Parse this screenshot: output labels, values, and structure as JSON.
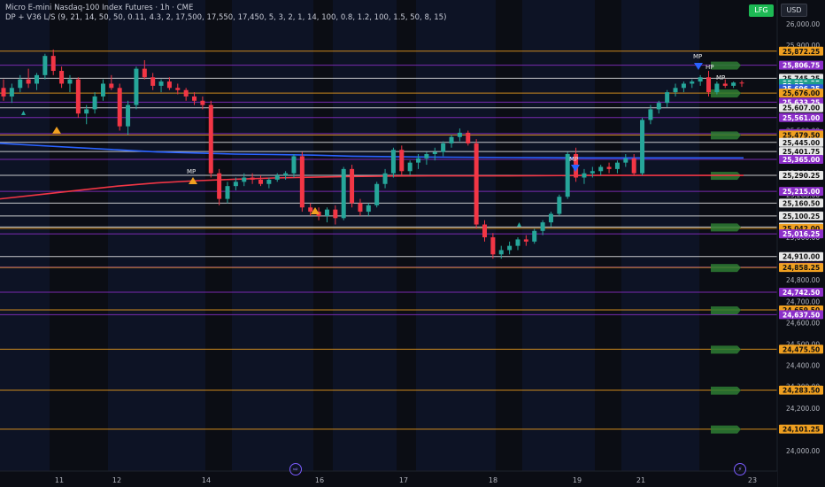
{
  "header": {
    "title": "Micro E-mini Nasdaq-100 Index Futures · 1h · CME",
    "indicator": "DP + V36 L/S (9, 21, 14, 50, 50, 0.11, 4.3, 2, 17,500, 17,550, 17,450, 5, 3, 2, 1, 14, 100, 0.8, 1.2, 100, 1.5, 50, 8, 15)"
  },
  "toolbar": {
    "currency": "USD",
    "badge": "LFG"
  },
  "colors": {
    "background": "#0b0d14",
    "session_stripe": "#111a33",
    "up_candle": "#26a69a",
    "down_candle": "#f23645",
    "orange_line": "#f0a020",
    "purple_line": "#8c2fc9",
    "white_line": "#e8e8e8",
    "blue_ma": "#2962ff",
    "red_ma": "#f23645"
  },
  "price_axis": {
    "ticks": [
      "26,000.00",
      "25,900.00",
      "25,800.00",
      "25,700.00",
      "25,600.00",
      "25,500.00",
      "25,400.00",
      "25,300.00",
      "25,200.00",
      "25,100.00",
      "25,000.00",
      "24,900.00",
      "24,800.00",
      "24,700.00",
      "24,600.00",
      "24,500.00",
      "24,400.00",
      "24,300.00",
      "24,200.00",
      "24,100.00",
      "24,000.00"
    ]
  },
  "time_axis": {
    "ticks": [
      "11",
      "12",
      "14",
      "16",
      "17",
      "18",
      "19",
      "21",
      "23"
    ]
  },
  "level_labels": [
    {
      "text": "25,872.25",
      "value": 25872.25,
      "color": "orange"
    },
    {
      "text": "25,806.75",
      "value": 25806.75,
      "color": "purple"
    },
    {
      "text": "25,745.25",
      "value": 25745.25,
      "color": "white"
    },
    {
      "text": "25,722.25",
      "value": 25722.25,
      "color": "teal"
    },
    {
      "text": "52:27",
      "value": 25709,
      "color": "teal"
    },
    {
      "text": "25,696.25",
      "value": 25696.25,
      "color": "blue"
    },
    {
      "text": "25,676.00",
      "value": 25676.0,
      "color": "orange"
    },
    {
      "text": "25,633.25",
      "value": 25633.25,
      "color": "purple"
    },
    {
      "text": "25,607.00",
      "value": 25607.0,
      "color": "white"
    },
    {
      "text": "25,561.00",
      "value": 25561.0,
      "color": "purple"
    },
    {
      "text": "25,485.75",
      "value": 25485.75,
      "color": "purple"
    },
    {
      "text": "25,479.50",
      "value": 25479.5,
      "color": "orange"
    },
    {
      "text": "25,445.00",
      "value": 25445.0,
      "color": "white"
    },
    {
      "text": "25,401.75",
      "value": 25401.75,
      "color": "white"
    },
    {
      "text": "25,365.00",
      "value": 25365.0,
      "color": "purple"
    },
    {
      "text": "25,290.25",
      "value": 25290.25,
      "color": "white"
    },
    {
      "text": "25,215.00",
      "value": 25215.0,
      "color": "purple"
    },
    {
      "text": "25,160.50",
      "value": 25160.5,
      "color": "white"
    },
    {
      "text": "25,100.25",
      "value": 25100.25,
      "color": "white"
    },
    {
      "text": "25,048.25",
      "value": 25048.25,
      "color": "white"
    },
    {
      "text": "25,042.00",
      "value": 25042.0,
      "color": "orange"
    },
    {
      "text": "25,016.25",
      "value": 25016.25,
      "color": "purple"
    },
    {
      "text": "24,910.00",
      "value": 24910.0,
      "color": "white"
    },
    {
      "text": "24,859.75",
      "value": 24859.75,
      "color": "purple"
    },
    {
      "text": "24,858.25",
      "value": 24858.25,
      "color": "orange"
    },
    {
      "text": "24,742.50",
      "value": 24742.5,
      "color": "purple"
    },
    {
      "text": "24,659.50",
      "value": 24659.5,
      "color": "orange"
    },
    {
      "text": "24,637.50",
      "value": 24637.5,
      "color": "purple"
    },
    {
      "text": "24,475.50",
      "value": 24475.5,
      "color": "orange"
    },
    {
      "text": "24,283.50",
      "value": 24283.5,
      "color": "orange"
    },
    {
      "text": "24,101.25",
      "value": 24101.25,
      "color": "orange"
    }
  ],
  "markers": [
    {
      "text": "MP",
      "kind": "down-triangle"
    },
    {
      "text": "HP",
      "kind": "label"
    },
    {
      "text": "MP",
      "kind": "label"
    },
    {
      "text": "MP",
      "kind": "up-triangle"
    },
    {
      "text": "MP",
      "kind": "down-triangle"
    }
  ],
  "chart_data": {
    "type": "candlestick",
    "title": "Micro E-mini Nasdaq-100 Index Futures · 1h · CME",
    "ylim": [
      24000,
      26000
    ],
    "x_ticks": [
      "11",
      "12",
      "14",
      "16",
      "17",
      "18",
      "19",
      "21",
      "23"
    ],
    "candles_ohlc": [
      [
        25700,
        25740,
        25640,
        25660
      ],
      [
        25660,
        25720,
        25630,
        25700
      ],
      [
        25700,
        25760,
        25680,
        25740
      ],
      [
        25740,
        25790,
        25700,
        25720
      ],
      [
        25720,
        25770,
        25690,
        25760
      ],
      [
        25760,
        25860,
        25740,
        25850
      ],
      [
        25850,
        25880,
        25760,
        25780
      ],
      [
        25780,
        25800,
        25700,
        25720
      ],
      [
        25720,
        25760,
        25680,
        25740
      ],
      [
        25740,
        25750,
        25560,
        25580
      ],
      [
        25580,
        25620,
        25530,
        25600
      ],
      [
        25600,
        25680,
        25580,
        25660
      ],
      [
        25660,
        25740,
        25640,
        25720
      ],
      [
        25720,
        25760,
        25690,
        25700
      ],
      [
        25700,
        25720,
        25500,
        25520
      ],
      [
        25520,
        25640,
        25480,
        25620
      ],
      [
        25620,
        25800,
        25600,
        25790
      ],
      [
        25790,
        25830,
        25740,
        25750
      ],
      [
        25750,
        25770,
        25690,
        25710
      ],
      [
        25710,
        25740,
        25680,
        25730
      ],
      [
        25730,
        25750,
        25690,
        25700
      ],
      [
        25700,
        25720,
        25670,
        25690
      ],
      [
        25690,
        25700,
        25640,
        25660
      ],
      [
        25660,
        25680,
        25620,
        25640
      ],
      [
        25640,
        25660,
        25600,
        25620
      ],
      [
        25620,
        25640,
        25280,
        25300
      ],
      [
        25300,
        25320,
        25150,
        25180
      ],
      [
        25180,
        25260,
        25160,
        25240
      ],
      [
        25240,
        25280,
        25220,
        25260
      ],
      [
        25260,
        25300,
        25240,
        25280
      ],
      [
        25280,
        25300,
        25250,
        25270
      ],
      [
        25270,
        25290,
        25240,
        25250
      ],
      [
        25250,
        25280,
        25230,
        25270
      ],
      [
        25270,
        25300,
        25260,
        25290
      ],
      [
        25290,
        25310,
        25270,
        25300
      ],
      [
        25300,
        25390,
        25280,
        25380
      ],
      [
        25380,
        25400,
        25120,
        25140
      ],
      [
        25140,
        25160,
        25100,
        25120
      ],
      [
        25120,
        25140,
        25080,
        25100
      ],
      [
        25100,
        25140,
        25070,
        25130
      ],
      [
        25130,
        25150,
        25060,
        25090
      ],
      [
        25090,
        25330,
        25080,
        25320
      ],
      [
        25320,
        25340,
        25140,
        25160
      ],
      [
        25160,
        25180,
        25100,
        25120
      ],
      [
        25120,
        25160,
        25100,
        25150
      ],
      [
        25150,
        25260,
        25140,
        25250
      ],
      [
        25250,
        25320,
        25230,
        25300
      ],
      [
        25300,
        25420,
        25280,
        25410
      ],
      [
        25410,
        25430,
        25290,
        25310
      ],
      [
        25310,
        25360,
        25290,
        25350
      ],
      [
        25350,
        25390,
        25320,
        25370
      ],
      [
        25370,
        25400,
        25340,
        25390
      ],
      [
        25390,
        25420,
        25360,
        25400
      ],
      [
        25400,
        25450,
        25380,
        25440
      ],
      [
        25440,
        25480,
        25420,
        25470
      ],
      [
        25470,
        25510,
        25450,
        25490
      ],
      [
        25490,
        25500,
        25430,
        25440
      ],
      [
        25440,
        25460,
        25040,
        25060
      ],
      [
        25060,
        25080,
        24980,
        25000
      ],
      [
        25000,
        25020,
        24900,
        24920
      ],
      [
        24920,
        24960,
        24900,
        24940
      ],
      [
        24940,
        24980,
        24920,
        24960
      ],
      [
        24960,
        25000,
        24940,
        24990
      ],
      [
        24990,
        25010,
        24960,
        24980
      ],
      [
        24980,
        25040,
        24970,
        25030
      ],
      [
        25030,
        25080,
        25010,
        25070
      ],
      [
        25070,
        25120,
        25050,
        25110
      ],
      [
        25110,
        25200,
        25100,
        25190
      ],
      [
        25190,
        25400,
        25180,
        25390
      ],
      [
        25390,
        25420,
        25260,
        25280
      ],
      [
        25280,
        25320,
        25250,
        25300
      ],
      [
        25300,
        25330,
        25280,
        25310
      ],
      [
        25310,
        25340,
        25290,
        25330
      ],
      [
        25330,
        25350,
        25300,
        25320
      ],
      [
        25320,
        25360,
        25300,
        25350
      ],
      [
        25350,
        25390,
        25330,
        25370
      ],
      [
        25370,
        25390,
        25290,
        25300
      ],
      [
        25300,
        25560,
        25290,
        25550
      ],
      [
        25550,
        25620,
        25530,
        25600
      ],
      [
        25600,
        25640,
        25580,
        25630
      ],
      [
        25630,
        25690,
        25610,
        25680
      ],
      [
        25680,
        25720,
        25660,
        25700
      ],
      [
        25700,
        25730,
        25680,
        25720
      ],
      [
        25720,
        25740,
        25700,
        25730
      ],
      [
        25730,
        25760,
        25710,
        25750
      ],
      [
        25750,
        25780,
        25660,
        25680
      ],
      [
        25680,
        25730,
        25670,
        25720
      ],
      [
        25720,
        25740,
        25700,
        25710
      ],
      [
        25710,
        25730,
        25700,
        25725
      ],
      [
        25725,
        25735,
        25705,
        25722
      ]
    ],
    "moving_averages": [
      {
        "name": "",
        "color": "#2962ff",
        "values": [
          25440,
          25430,
          25420,
          25410,
          25400,
          25395,
          25390,
          25388,
          25385,
          25380,
          25378,
          25376,
          25375,
          25374,
          25373,
          25372,
          25372,
          25372,
          25372,
          25372
        ]
      },
      {
        "name": "",
        "color": "#f23645",
        "values": [
          25180,
          25200,
          25220,
          25240,
          25255,
          25265,
          25272,
          25278,
          25282,
          25285,
          25287,
          25288,
          25288,
          25288,
          25289,
          25290,
          25290,
          25290,
          25290,
          25290
        ]
      }
    ]
  }
}
